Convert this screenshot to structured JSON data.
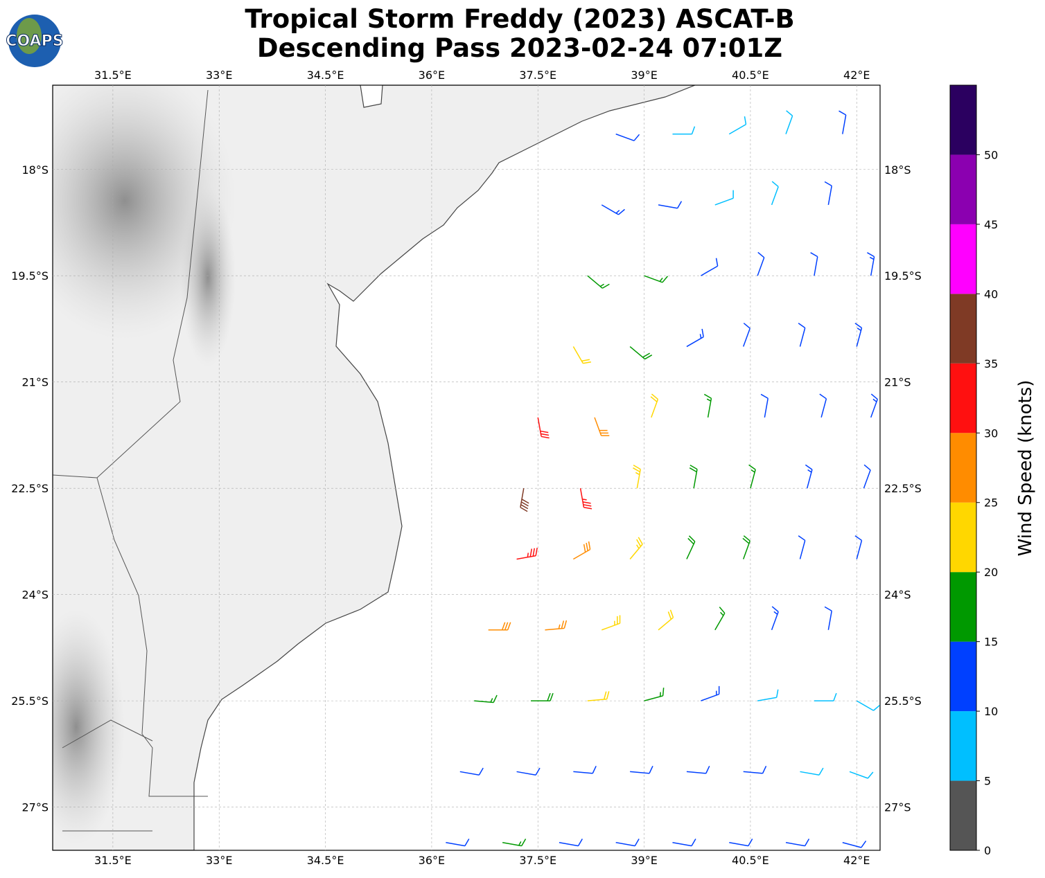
{
  "map": {
    "logo_text": "COAPS",
    "title": [
      "Tropical Storm Freddy (2023) ASCAT-B",
      "Descending Pass 2023-02-24 07:01Z"
    ],
    "xlim": [
      30.65,
      42.33
    ],
    "ylim": [
      -27.61,
      -16.81
    ],
    "xticks": [
      {
        "value": 31.5,
        "label": "31.5°E"
      },
      {
        "value": 33,
        "label": "33°E"
      },
      {
        "value": 34.5,
        "label": "34.5°E"
      },
      {
        "value": 36,
        "label": "36°E"
      },
      {
        "value": 37.5,
        "label": "37.5°E"
      },
      {
        "value": 39,
        "label": "39°E"
      },
      {
        "value": 40.5,
        "label": "40.5°E"
      },
      {
        "value": 42,
        "label": "42°E"
      }
    ],
    "yticks": [
      {
        "value": -18,
        "label": "18°S"
      },
      {
        "value": -19.5,
        "label": "19.5°S"
      },
      {
        "value": -21,
        "label": "21°S"
      },
      {
        "value": -22.5,
        "label": "22.5°S"
      },
      {
        "value": -24,
        "label": "24°S"
      },
      {
        "value": -25.5,
        "label": "25.5°S"
      },
      {
        "value": -27,
        "label": "27°S"
      }
    ],
    "grid": true,
    "colorbar": {
      "label": "Wind Speed (knots)",
      "clim": [
        0,
        55
      ],
      "bounds": [
        0,
        5,
        10,
        15,
        20,
        25,
        30,
        35,
        40,
        45,
        50,
        55
      ],
      "colors": [
        "#555555",
        "#00bfff",
        "#0040ff",
        "#009900",
        "#ffd700",
        "#ff8c00",
        "#ff1010",
        "#7f3a25",
        "#ff00ff",
        "#8b00b0",
        "#2b0060"
      ],
      "ticks": [
        0,
        5,
        10,
        15,
        20,
        25,
        30,
        35,
        40,
        45,
        50
      ]
    },
    "barbs": [
      [
        38.6,
        -17.5,
        12,
        110
      ],
      [
        39.4,
        -17.5,
        9,
        90
      ],
      [
        40.2,
        -17.5,
        8,
        60
      ],
      [
        41.0,
        -17.5,
        8,
        20
      ],
      [
        41.8,
        -17.5,
        10,
        10
      ],
      [
        38.4,
        -18.5,
        13,
        120
      ],
      [
        39.2,
        -18.5,
        10,
        100
      ],
      [
        40.0,
        -18.5,
        9,
        70
      ],
      [
        40.8,
        -18.5,
        8,
        20
      ],
      [
        41.6,
        -18.5,
        12,
        10
      ],
      [
        38.2,
        -19.5,
        17,
        130
      ],
      [
        39.0,
        -19.5,
        17,
        110
      ],
      [
        39.8,
        -19.5,
        12,
        60
      ],
      [
        40.6,
        -19.5,
        11,
        20
      ],
      [
        41.4,
        -19.5,
        12,
        10
      ],
      [
        42.2,
        -19.5,
        13,
        10
      ],
      [
        38.0,
        -20.5,
        22,
        150
      ],
      [
        38.8,
        -20.5,
        18,
        130
      ],
      [
        39.6,
        -20.5,
        14,
        60
      ],
      [
        40.4,
        -20.5,
        12,
        20
      ],
      [
        41.2,
        -20.5,
        12,
        15
      ],
      [
        42.0,
        -20.5,
        13,
        15
      ],
      [
        37.5,
        -21.5,
        30,
        170
      ],
      [
        38.3,
        -21.5,
        28,
        160
      ],
      [
        39.1,
        -21.5,
        22,
        20
      ],
      [
        39.9,
        -21.5,
        17,
        10
      ],
      [
        40.7,
        -21.5,
        12,
        10
      ],
      [
        41.5,
        -21.5,
        12,
        15
      ],
      [
        42.2,
        -21.5,
        13,
        20
      ],
      [
        37.3,
        -22.5,
        38,
        190
      ],
      [
        38.1,
        -22.5,
        33,
        170
      ],
      [
        38.9,
        -22.5,
        24,
        10
      ],
      [
        39.7,
        -22.5,
        18,
        10
      ],
      [
        40.5,
        -22.5,
        17,
        15
      ],
      [
        41.3,
        -22.5,
        13,
        15
      ],
      [
        42.1,
        -22.5,
        12,
        20
      ],
      [
        37.2,
        -23.5,
        33,
        80
      ],
      [
        38.0,
        -23.5,
        28,
        60
      ],
      [
        38.8,
        -23.5,
        24,
        40
      ],
      [
        39.6,
        -23.5,
        19,
        25
      ],
      [
        40.4,
        -23.5,
        19,
        20
      ],
      [
        41.2,
        -23.5,
        12,
        15
      ],
      [
        42.0,
        -23.5,
        12,
        15
      ],
      [
        36.8,
        -24.5,
        29,
        90
      ],
      [
        37.6,
        -24.5,
        27,
        85
      ],
      [
        38.4,
        -24.5,
        23,
        70
      ],
      [
        39.2,
        -24.5,
        20,
        50
      ],
      [
        40.0,
        -24.5,
        17,
        30
      ],
      [
        40.8,
        -24.5,
        13,
        20
      ],
      [
        41.6,
        -24.5,
        12,
        10
      ],
      [
        36.6,
        -25.5,
        17,
        95
      ],
      [
        37.4,
        -25.5,
        18,
        90
      ],
      [
        38.2,
        -25.5,
        21,
        85
      ],
      [
        39.0,
        -25.5,
        16,
        75
      ],
      [
        39.8,
        -25.5,
        13,
        70
      ],
      [
        40.6,
        -25.5,
        9,
        80
      ],
      [
        41.4,
        -25.5,
        8,
        90
      ],
      [
        42.0,
        -25.5,
        9,
        120
      ],
      [
        36.4,
        -26.5,
        12,
        100
      ],
      [
        37.2,
        -26.5,
        12,
        100
      ],
      [
        38.0,
        -26.5,
        12,
        95
      ],
      [
        38.8,
        -26.5,
        12,
        95
      ],
      [
        39.6,
        -26.5,
        12,
        95
      ],
      [
        40.4,
        -26.5,
        11,
        95
      ],
      [
        41.2,
        -26.5,
        9,
        100
      ],
      [
        41.9,
        -26.5,
        8,
        110
      ],
      [
        36.2,
        -27.5,
        12,
        100
      ],
      [
        37.0,
        -27.5,
        16,
        100
      ],
      [
        37.8,
        -27.5,
        12,
        100
      ],
      [
        38.6,
        -27.5,
        12,
        100
      ],
      [
        39.4,
        -27.5,
        12,
        100
      ],
      [
        40.2,
        -27.5,
        11,
        100
      ],
      [
        41.0,
        -27.5,
        10,
        100
      ],
      [
        41.8,
        -27.5,
        10,
        105
      ]
    ]
  }
}
